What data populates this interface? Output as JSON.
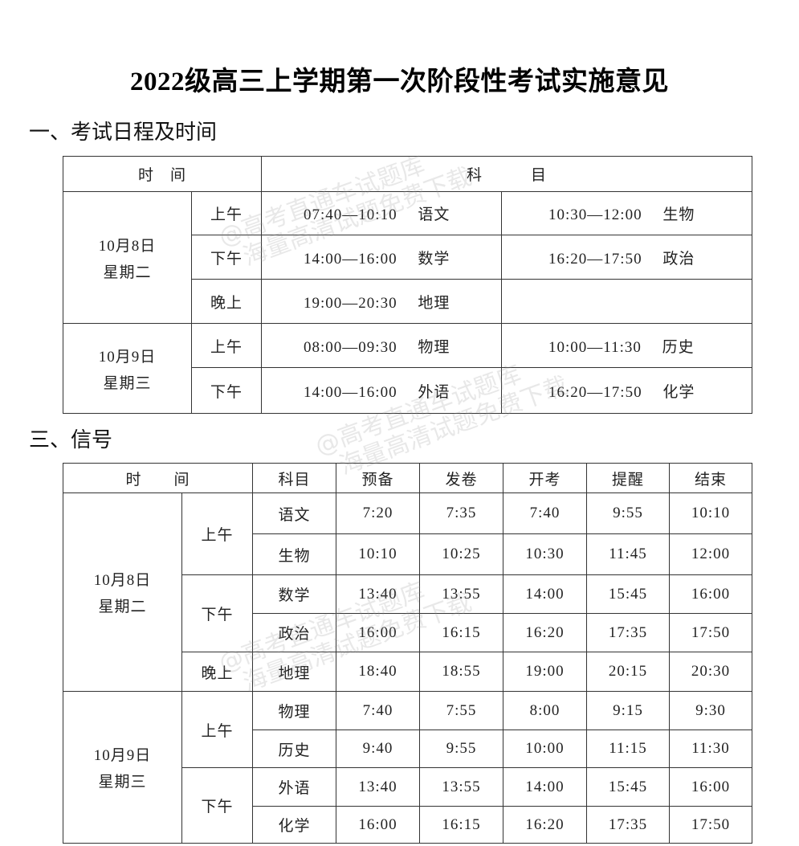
{
  "title": "2022级高三上学期第一次阶段性考试实施意见",
  "section1": {
    "heading": "一、考试日程及时间",
    "headers": [
      "时　间",
      "科　　　目"
    ],
    "days": [
      {
        "date": "10月8日",
        "weekday": "星期二",
        "periods": [
          {
            "period": "上午",
            "slots": [
              {
                "time": "07:40—10:10",
                "subject": "语文"
              },
              {
                "time": "10:30—12:00",
                "subject": "生物"
              }
            ]
          },
          {
            "period": "下午",
            "slots": [
              {
                "time": "14:00—16:00",
                "subject": "数学"
              },
              {
                "time": "16:20—17:50",
                "subject": "政治"
              }
            ]
          },
          {
            "period": "晚上",
            "slots": [
              {
                "time": "19:00—20:30",
                "subject": "地理"
              }
            ]
          }
        ]
      },
      {
        "date": "10月9日",
        "weekday": "星期三",
        "periods": [
          {
            "period": "上午",
            "slots": [
              {
                "time": "08:00—09:30",
                "subject": "物理"
              },
              {
                "time": "10:00—11:30",
                "subject": "历史"
              }
            ]
          },
          {
            "period": "下午",
            "slots": [
              {
                "time": "14:00—16:00",
                "subject": "外语"
              },
              {
                "time": "16:20—17:50",
                "subject": "化学"
              }
            ]
          }
        ]
      }
    ]
  },
  "section2": {
    "heading": "三、信号",
    "headers": [
      "时　　间",
      "科目",
      "预备",
      "发卷",
      "开考",
      "提醒",
      "结束"
    ],
    "days": [
      {
        "date": "10月8日",
        "weekday": "星期二",
        "periods": [
          {
            "period": "上午",
            "rows": [
              {
                "subject": "语文",
                "times": [
                  "7:20",
                  "7:35",
                  "7:40",
                  "9:55",
                  "10:10"
                ]
              },
              {
                "subject": "生物",
                "times": [
                  "10:10",
                  "10:25",
                  "10:30",
                  "11:45",
                  "12:00"
                ]
              }
            ]
          },
          {
            "period": "下午",
            "rows": [
              {
                "subject": "数学",
                "times": [
                  "13:40",
                  "13:55",
                  "14:00",
                  "15:45",
                  "16:00"
                ]
              },
              {
                "subject": "政治",
                "times": [
                  "16:00",
                  "16:15",
                  "16:20",
                  "17:35",
                  "17:50"
                ]
              }
            ]
          },
          {
            "period": "晚上",
            "rows": [
              {
                "subject": "地理",
                "times": [
                  "18:40",
                  "18:55",
                  "19:00",
                  "20:15",
                  "20:30"
                ]
              }
            ]
          }
        ]
      },
      {
        "date": "10月9日",
        "weekday": "星期三",
        "periods": [
          {
            "period": "上午",
            "rows": [
              {
                "subject": "物理",
                "times": [
                  "7:40",
                  "7:55",
                  "8:00",
                  "9:15",
                  "9:30"
                ]
              },
              {
                "subject": "历史",
                "times": [
                  "9:40",
                  "9:55",
                  "10:00",
                  "11:15",
                  "11:30"
                ]
              }
            ]
          },
          {
            "period": "下午",
            "rows": [
              {
                "subject": "外语",
                "times": [
                  "13:40",
                  "13:55",
                  "14:00",
                  "15:45",
                  "16:00"
                ]
              },
              {
                "subject": "化学",
                "times": [
                  "16:00",
                  "16:15",
                  "16:20",
                  "17:35",
                  "17:50"
                ]
              }
            ]
          }
        ]
      }
    ]
  },
  "watermark": {
    "line1": "@高考直通车试题库",
    "line2": "海量高清试题免费下载"
  }
}
